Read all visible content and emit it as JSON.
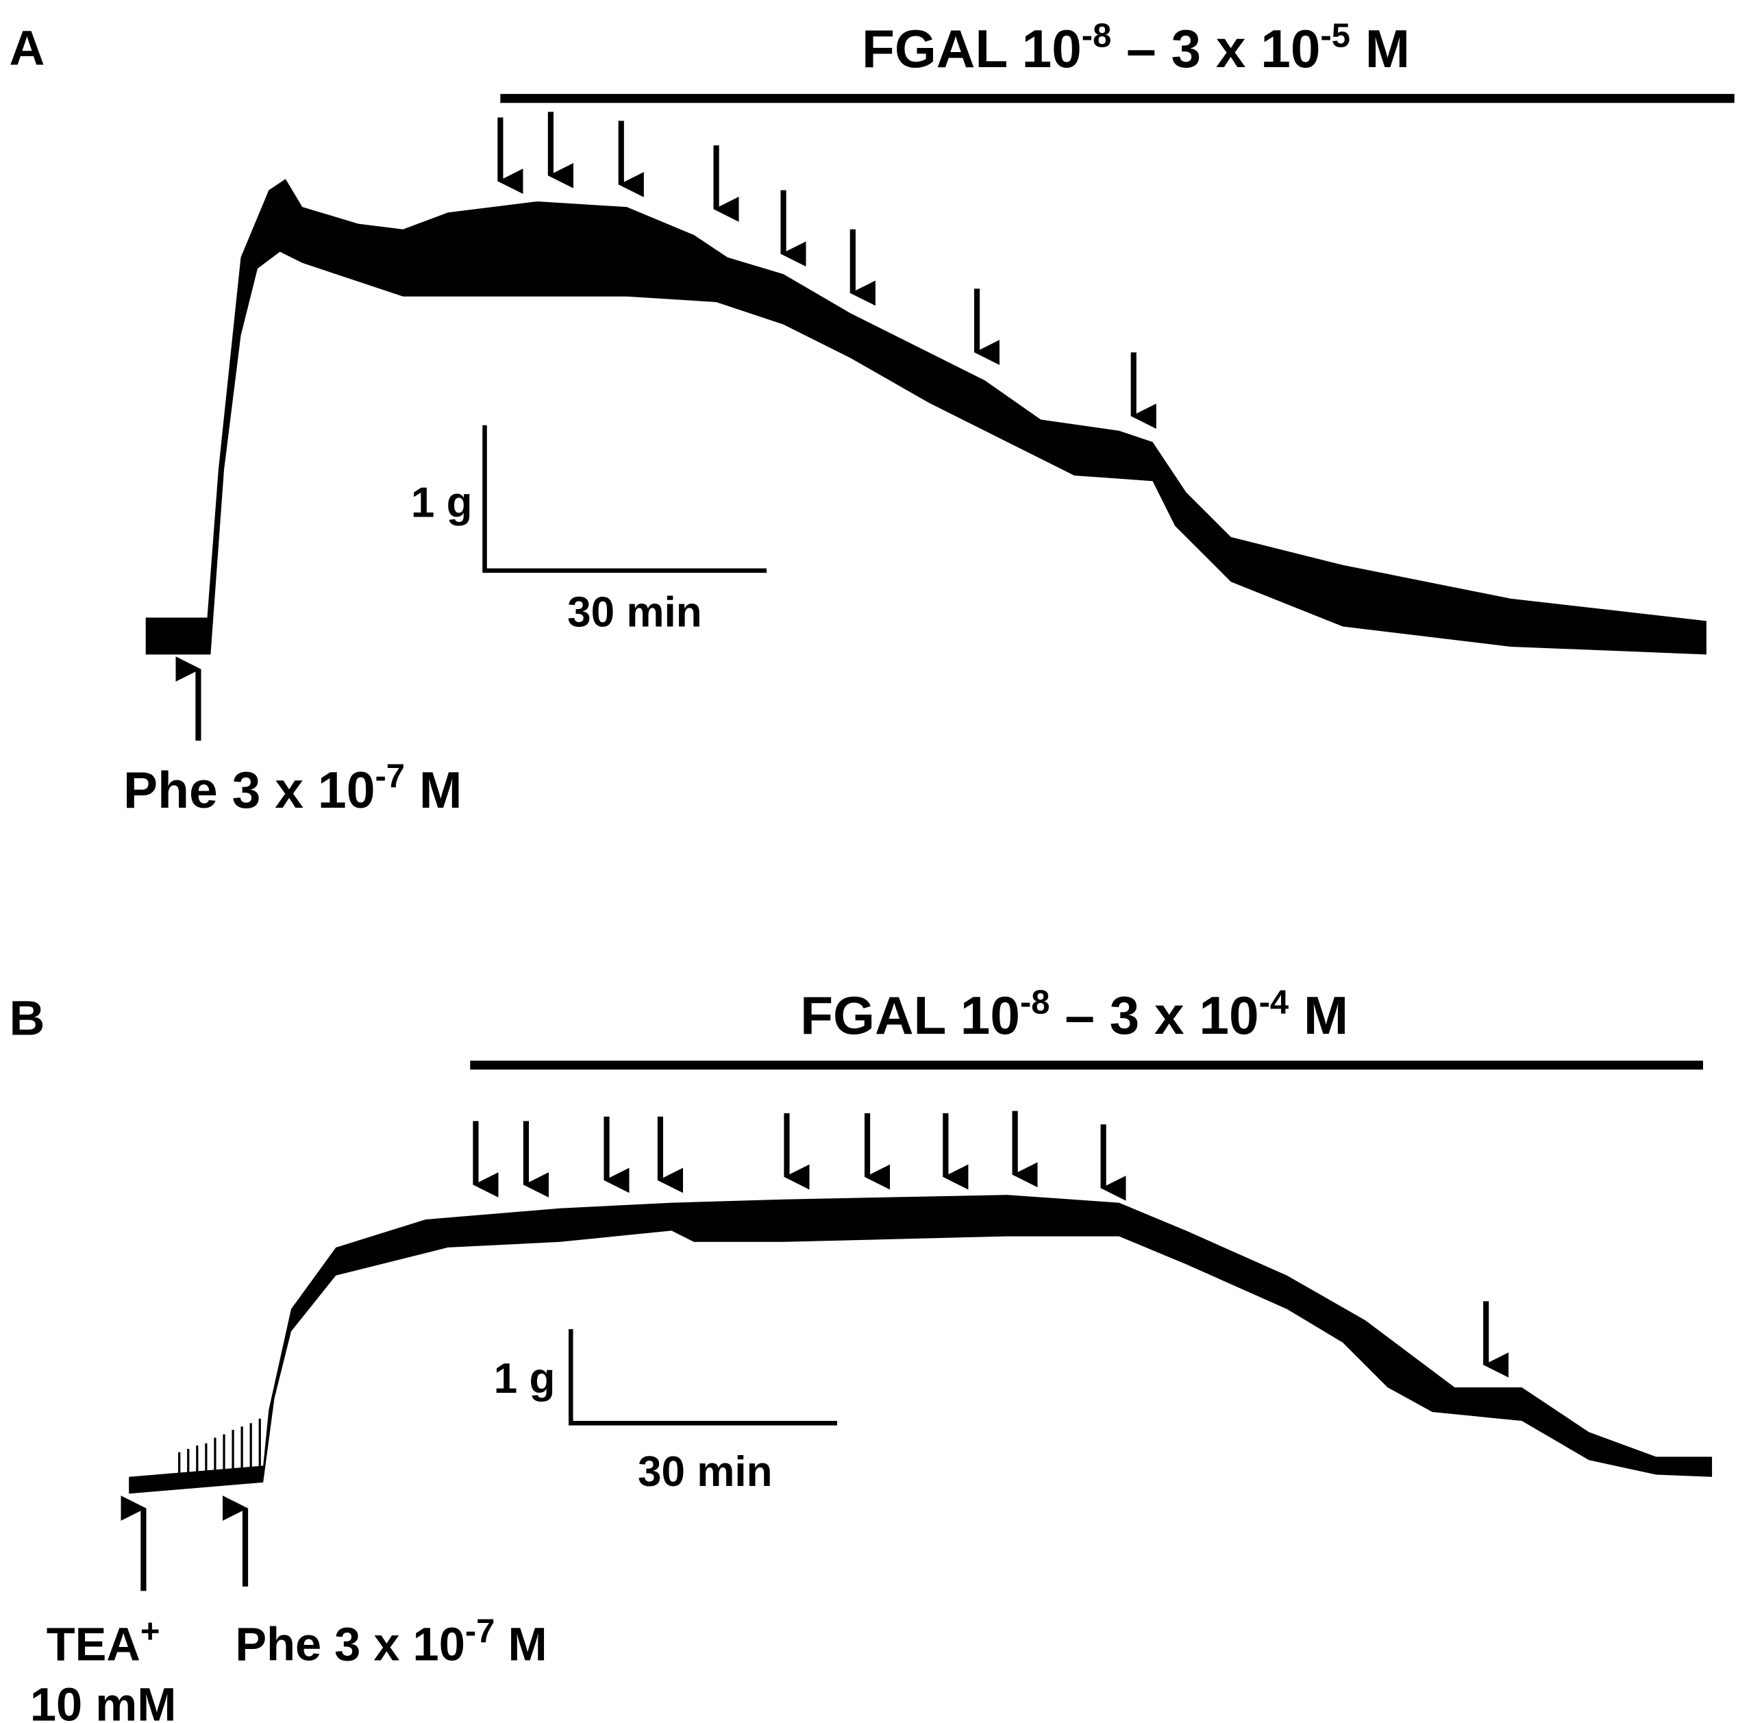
{
  "panels": [
    {
      "label": "A",
      "drug": [
        "FGAL 10",
        "-8",
        " – 3 x 10",
        "-5",
        " M"
      ],
      "scale_force": "1 g",
      "scale_time": "30 min",
      "phe": [
        "Phe 3 x 10",
        "-7",
        " M"
      ]
    },
    {
      "label": "B",
      "drug": [
        "FGAL 10",
        "-8",
        " – 3 x 10",
        "-4",
        " M"
      ],
      "scale_force": "1 g",
      "scale_time": "30 min",
      "phe": [
        "Phe 3 x 10",
        "-7",
        " M"
      ],
      "tea": [
        "TEA",
        "+"
      ],
      "tea_conc": "10 mM"
    }
  ]
}
